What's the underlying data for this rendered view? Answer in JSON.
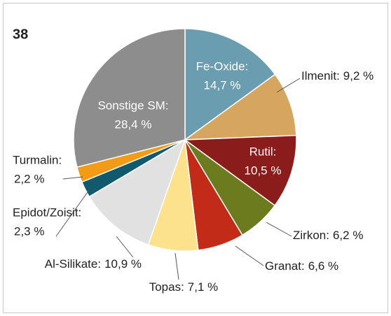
{
  "chart_data": {
    "type": "pie",
    "title": "38",
    "categories": [
      "Fe-Oxide:",
      "Ilmenit:",
      "Rutil:",
      "Zirkon:",
      "Granat:",
      "Topas:",
      "Al-Silikate:",
      "Epidot/Zoisit:",
      "Turmalin:",
      "Sonstige SM:"
    ],
    "values": [
      14.7,
      9.2,
      10.5,
      6.2,
      6.6,
      7.1,
      10.9,
      2.3,
      2.2,
      28.4
    ],
    "value_labels": [
      "14,7 %",
      "9,2 %",
      "10,5 %",
      "6,2 %",
      "6,6 %",
      "7,1 %",
      "10,9 %",
      "2,3 %",
      "2,2 %",
      "28,4 %"
    ],
    "colors": [
      "#6b9db1",
      "#d6a660",
      "#8b1c1c",
      "#6b7b1e",
      "#c22b17",
      "#fde28d",
      "#e1e1e1",
      "#115a6e",
      "#f39a16",
      "#8d8d8d"
    ]
  }
}
